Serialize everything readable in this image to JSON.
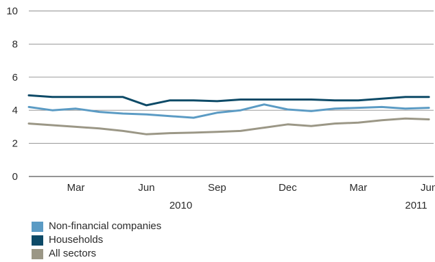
{
  "chart_data": {
    "type": "line",
    "title": "",
    "xlabel": "",
    "ylabel": "",
    "ylim": [
      0,
      10
    ],
    "yticks": [
      "0",
      "2",
      "4",
      "6",
      "8",
      "10"
    ],
    "grid": true,
    "legend_placement": "bottom-left",
    "x": [
      "2010-01",
      "2010-02",
      "2010-03",
      "2010-04",
      "2010-05",
      "2010-06",
      "2010-07",
      "2010-08",
      "2010-09",
      "2010-10",
      "2010-11",
      "2010-12",
      "2011-01",
      "2011-02",
      "2011-03",
      "2011-04",
      "2011-05",
      "2011-06"
    ],
    "xtick_labels": [
      {
        "month": "2010-03",
        "label": "Mar"
      },
      {
        "month": "2010-06",
        "label": "Jun"
      },
      {
        "month": "2010-09",
        "label": "Sep"
      },
      {
        "month": "2010-12",
        "label": "Dec"
      },
      {
        "month": "2011-03",
        "label": "Mar"
      },
      {
        "month": "2011-06",
        "label": "Jun"
      }
    ],
    "year_labels": [
      {
        "month": "2010-06",
        "label": "2010"
      },
      {
        "month": "2011-04",
        "label": "2011"
      }
    ],
    "series": [
      {
        "name": "Non-financial companies",
        "color": "#5b9bc4",
        "values": [
          4.2,
          4.0,
          4.1,
          3.9,
          3.8,
          3.75,
          3.65,
          3.55,
          3.85,
          4.0,
          4.35,
          4.05,
          3.95,
          4.1,
          4.15,
          4.2,
          4.1,
          4.15
        ]
      },
      {
        "name": "Households",
        "color": "#0d4a67",
        "values": [
          4.9,
          4.8,
          4.8,
          4.8,
          4.8,
          4.3,
          4.6,
          4.6,
          4.55,
          4.65,
          4.65,
          4.65,
          4.65,
          4.6,
          4.6,
          4.7,
          4.8,
          4.8
        ]
      },
      {
        "name": "All sectors",
        "color": "#9b9786",
        "values": [
          3.2,
          3.1,
          3.0,
          2.9,
          2.75,
          2.55,
          2.62,
          2.65,
          2.7,
          2.75,
          2.95,
          3.15,
          3.05,
          3.2,
          3.25,
          3.4,
          3.5,
          3.45
        ]
      }
    ]
  }
}
